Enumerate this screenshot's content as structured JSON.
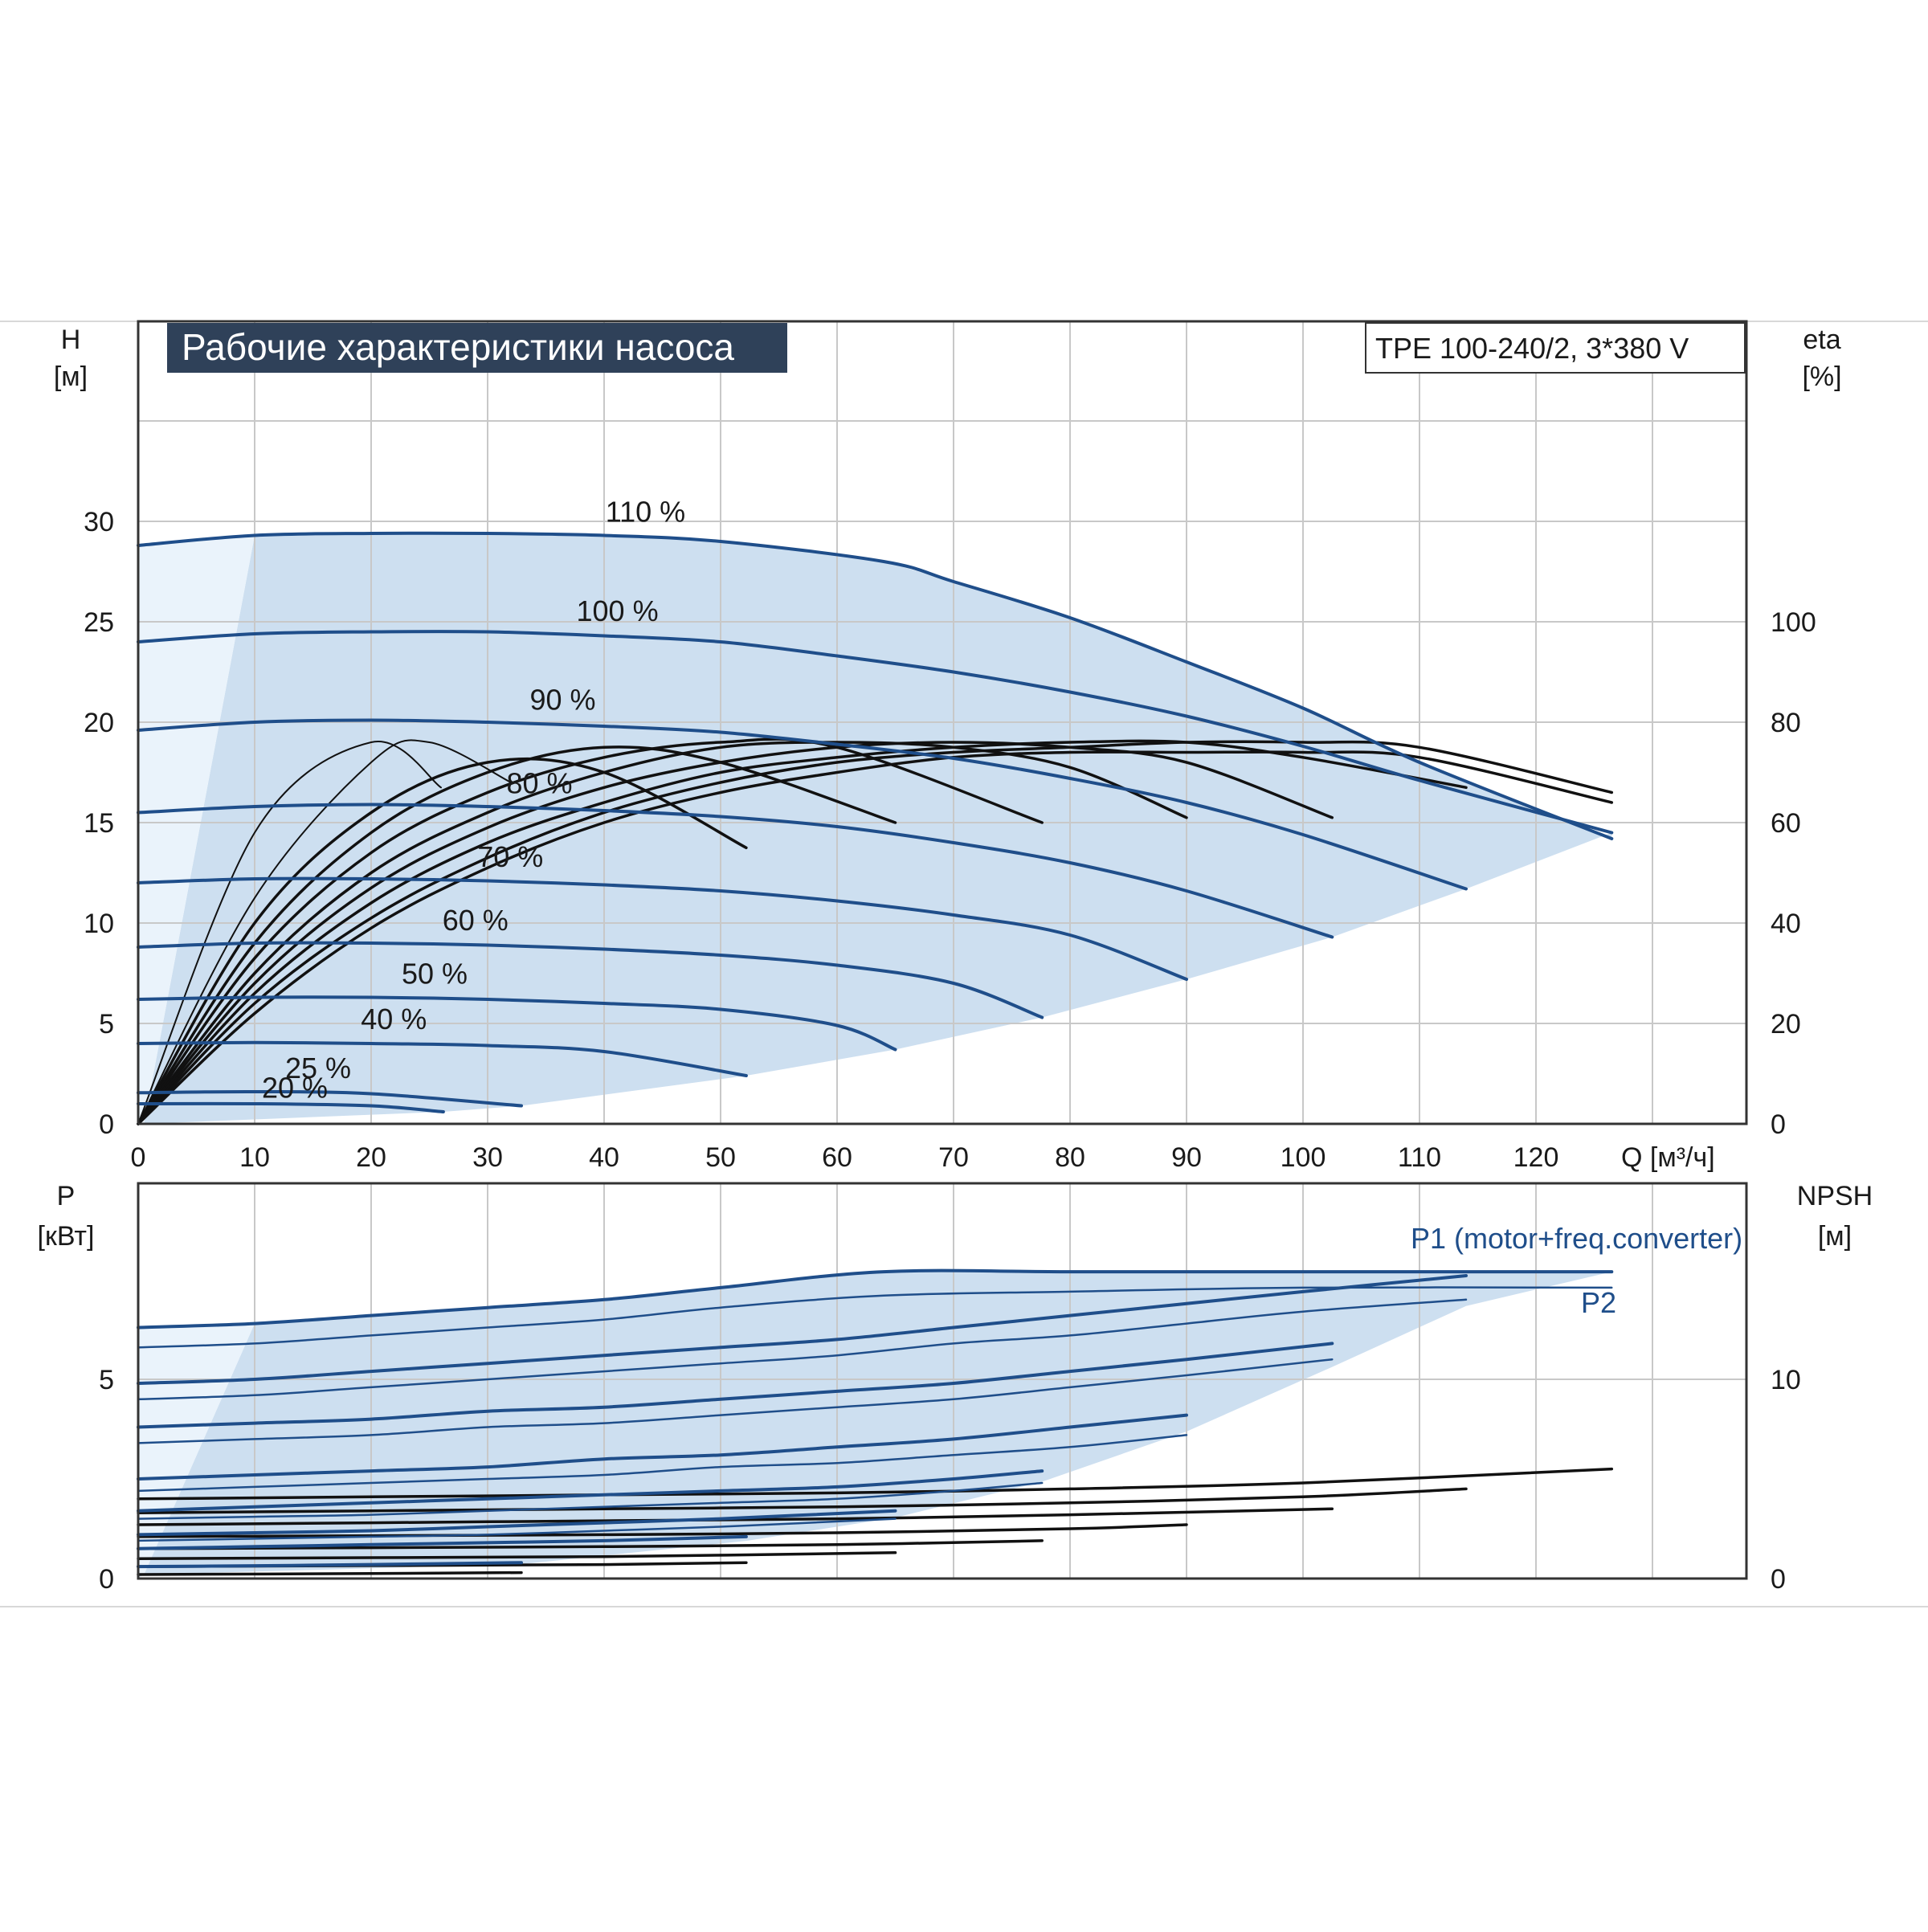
{
  "chart_data": [
    {
      "type": "line",
      "title": "Рабочие характеристики насоса",
      "model": "TPE 100-240/2, 3*380 V",
      "xlabel": "Q [м³/ч]",
      "ylabel": "H",
      "ylabel_unit": "[м]",
      "y2label": "eta",
      "y2label_unit": "[%]",
      "xlim": [
        0,
        130
      ],
      "ylim": [
        0,
        35
      ],
      "y2lim": [
        0,
        140
      ],
      "x_ticks": [
        "0",
        "10",
        "20",
        "30",
        "40",
        "50",
        "60",
        "70",
        "80",
        "90",
        "100",
        "110",
        "120"
      ],
      "y_ticks": [
        "0",
        "5",
        "10",
        "15",
        "20",
        "25",
        "30"
      ],
      "y2_ticks": [
        "0",
        "20",
        "40",
        "60",
        "80",
        "100"
      ],
      "grid": true,
      "colors": {
        "head_curves": "#1f4e8a",
        "fill": "#cddff0",
        "eta": "#111111",
        "title_bg": "#2f4159"
      },
      "speed_curves": [
        {
          "label": "110 %",
          "x": [
            0,
            10,
            20,
            30,
            40,
            50,
            64,
            70,
            80,
            90,
            100,
            110,
            126.5
          ],
          "y": [
            28.8,
            29.3,
            29.4,
            29.4,
            29.3,
            29,
            28,
            27,
            25.2,
            23,
            20.7,
            18,
            14.2
          ]
        },
        {
          "label": "100 %",
          "x": [
            0,
            10,
            20,
            30,
            40,
            50,
            60,
            70,
            80,
            90,
            100,
            110,
            126.5
          ],
          "y": [
            24,
            24.4,
            24.5,
            24.5,
            24.3,
            24,
            23.3,
            22.5,
            21.5,
            20.3,
            18.8,
            17.1,
            14.5
          ]
        },
        {
          "label": "90 %",
          "x": [
            0,
            10,
            20,
            30,
            40,
            50,
            60,
            70,
            80,
            90,
            100,
            114
          ],
          "y": [
            19.6,
            20,
            20.1,
            20,
            19.8,
            19.5,
            18.9,
            18.2,
            17.2,
            16,
            14.4,
            11.7
          ]
        },
        {
          "label": "80 %",
          "x": [
            0,
            10,
            20,
            30,
            40,
            50,
            60,
            70,
            80,
            90,
            102.5
          ],
          "y": [
            15.5,
            15.8,
            15.9,
            15.8,
            15.6,
            15.3,
            14.8,
            14,
            13,
            11.6,
            9.3
          ]
        },
        {
          "label": "70 %",
          "x": [
            0,
            10,
            20,
            30,
            40,
            50,
            60,
            70,
            80,
            90
          ],
          "y": [
            12,
            12.2,
            12.2,
            12.1,
            11.9,
            11.6,
            11.1,
            10.4,
            9.4,
            7.2
          ]
        },
        {
          "label": "60 %",
          "x": [
            0,
            10,
            20,
            30,
            40,
            50,
            60,
            70,
            77.6
          ],
          "y": [
            8.8,
            9,
            9,
            8.9,
            8.7,
            8.4,
            7.9,
            7,
            5.3
          ]
        },
        {
          "label": "50 %",
          "x": [
            0,
            10,
            20,
            30,
            40,
            50,
            60,
            65
          ],
          "y": [
            6.2,
            6.3,
            6.3,
            6.2,
            6,
            5.7,
            4.9,
            3.7
          ]
        },
        {
          "label": "40 %",
          "x": [
            0,
            10,
            20,
            30,
            40,
            52.2
          ],
          "y": [
            4,
            4.05,
            4,
            3.9,
            3.6,
            2.4
          ]
        },
        {
          "label": "25 %",
          "x": [
            0,
            10,
            20,
            32.9
          ],
          "y": [
            1.55,
            1.6,
            1.5,
            0.9
          ]
        },
        {
          "label": "20 %",
          "x": [
            0,
            10,
            20,
            26.2
          ],
          "y": [
            1,
            1,
            0.9,
            0.6
          ]
        }
      ],
      "efficiency_curves": [
        {
          "x": [
            0,
            10,
            20,
            26
          ],
          "y": [
            0,
            58,
            76,
            67
          ]
        },
        {
          "x": [
            0,
            10,
            20,
            25,
            32
          ],
          "y": [
            0,
            45,
            72,
            76,
            68
          ]
        },
        {
          "x": [
            0,
            10,
            20,
            30,
            40,
            52.2
          ],
          "y": [
            0,
            40,
            62,
            72,
            70,
            55
          ]
        },
        {
          "x": [
            0,
            10,
            20,
            30,
            40,
            50,
            65
          ],
          "y": [
            0,
            36,
            58,
            70,
            75,
            72,
            60
          ]
        },
        {
          "x": [
            0,
            10,
            20,
            30,
            40,
            50,
            60,
            77.6
          ],
          "y": [
            0,
            33,
            54,
            66,
            73,
            76,
            75,
            60
          ]
        },
        {
          "x": [
            0,
            10,
            20,
            30,
            40,
            50,
            60,
            70,
            80,
            90
          ],
          "y": [
            0,
            30,
            50,
            62,
            70,
            75,
            76,
            75,
            71,
            61
          ]
        },
        {
          "x": [
            0,
            10,
            20,
            30,
            40,
            50,
            60,
            70,
            80,
            90,
            102.5
          ],
          "y": [
            0,
            28,
            47,
            59,
            67,
            72,
            75,
            76,
            75,
            72,
            61
          ]
        },
        {
          "x": [
            0,
            10,
            20,
            30,
            40,
            50,
            60,
            70,
            80,
            90,
            100,
            114
          ],
          "y": [
            0,
            26,
            44,
            56,
            64,
            70,
            73,
            75,
            76,
            76,
            73,
            67
          ]
        },
        {
          "x": [
            0,
            10,
            20,
            30,
            40,
            50,
            60,
            70,
            80,
            90,
            100,
            110,
            126.5
          ],
          "y": [
            0,
            24,
            41,
            53,
            62,
            68,
            72,
            74,
            75,
            76,
            76,
            75,
            66
          ]
        },
        {
          "x": [
            0,
            10,
            20,
            30,
            40,
            50,
            60,
            70,
            80,
            90,
            100,
            110,
            126.5
          ],
          "y": [
            0,
            22,
            39,
            51,
            60,
            66,
            70,
            73,
            74,
            74,
            74,
            73,
            64
          ]
        }
      ]
    },
    {
      "type": "line",
      "ylabel": "P",
      "ylabel_unit": "[кВт]",
      "y2label": "NPSH",
      "y2label_unit": "[м]",
      "xlim": [
        0,
        130
      ],
      "ylim": [
        0,
        9.3
      ],
      "y2lim": [
        0,
        18.6
      ],
      "y_ticks": [
        "0",
        "5"
      ],
      "y2_ticks": [
        "0",
        "10"
      ],
      "grid": true,
      "series_labels": [
        "P1 (motor+freq.converter)",
        "P2"
      ],
      "p1_curves": [
        {
          "x": [
            0,
            10,
            20,
            30,
            40,
            50,
            64,
            80,
            100,
            126.5
          ],
          "y": [
            6.3,
            6.4,
            6.6,
            6.8,
            7.0,
            7.3,
            7.7,
            7.7,
            7.7,
            7.7
          ]
        },
        {
          "x": [
            0,
            10,
            20,
            30,
            40,
            50,
            60,
            70,
            80,
            90,
            100,
            114
          ],
          "y": [
            4.9,
            5.0,
            5.2,
            5.4,
            5.6,
            5.8,
            6.0,
            6.3,
            6.6,
            6.9,
            7.2,
            7.6
          ]
        },
        {
          "x": [
            0,
            10,
            20,
            30,
            40,
            50,
            60,
            70,
            80,
            90,
            102.5
          ],
          "y": [
            3.8,
            3.9,
            4.0,
            4.2,
            4.3,
            4.5,
            4.7,
            4.9,
            5.2,
            5.5,
            5.9
          ]
        },
        {
          "x": [
            0,
            10,
            20,
            30,
            40,
            50,
            60,
            70,
            80,
            90
          ],
          "y": [
            2.5,
            2.6,
            2.7,
            2.8,
            3.0,
            3.1,
            3.3,
            3.5,
            3.8,
            4.1
          ]
        },
        {
          "x": [
            0,
            10,
            20,
            30,
            40,
            50,
            60,
            70,
            77.6
          ],
          "y": [
            1.7,
            1.8,
            1.9,
            2.0,
            2.1,
            2.2,
            2.3,
            2.5,
            2.7
          ]
        },
        {
          "x": [
            0,
            10,
            20,
            30,
            40,
            50,
            65
          ],
          "y": [
            1.1,
            1.15,
            1.2,
            1.3,
            1.4,
            1.5,
            1.7
          ]
        },
        {
          "x": [
            0,
            10,
            20,
            30,
            40,
            52.2
          ],
          "y": [
            0.75,
            0.8,
            0.85,
            0.9,
            0.95,
            1.05
          ]
        },
        {
          "x": [
            0,
            10,
            20,
            32.9
          ],
          "y": [
            0.3,
            0.32,
            0.35,
            0.4
          ]
        }
      ],
      "p2_curves": [
        {
          "x": [
            0,
            10,
            20,
            30,
            40,
            50,
            64,
            80,
            100,
            126.5
          ],
          "y": [
            5.8,
            5.9,
            6.1,
            6.3,
            6.5,
            6.8,
            7.1,
            7.2,
            7.3,
            7.3
          ]
        },
        {
          "x": [
            0,
            10,
            20,
            30,
            40,
            50,
            60,
            70,
            80,
            90,
            100,
            114
          ],
          "y": [
            4.5,
            4.6,
            4.8,
            5.0,
            5.2,
            5.4,
            5.6,
            5.9,
            6.1,
            6.4,
            6.7,
            7.0
          ]
        },
        {
          "x": [
            0,
            10,
            20,
            30,
            40,
            50,
            60,
            70,
            80,
            90,
            102.5
          ],
          "y": [
            3.4,
            3.5,
            3.6,
            3.8,
            3.9,
            4.1,
            4.3,
            4.5,
            4.8,
            5.1,
            5.5
          ]
        },
        {
          "x": [
            0,
            10,
            20,
            30,
            40,
            50,
            60,
            70,
            80,
            90
          ],
          "y": [
            2.2,
            2.3,
            2.4,
            2.5,
            2.6,
            2.8,
            2.9,
            3.1,
            3.3,
            3.6
          ]
        },
        {
          "x": [
            0,
            10,
            20,
            30,
            40,
            50,
            60,
            70,
            77.6
          ],
          "y": [
            1.5,
            1.55,
            1.6,
            1.7,
            1.8,
            1.9,
            2.0,
            2.2,
            2.4
          ]
        },
        {
          "x": [
            0,
            10,
            20,
            30,
            40,
            50,
            65
          ],
          "y": [
            0.95,
            1.0,
            1.05,
            1.1,
            1.2,
            1.3,
            1.5
          ]
        }
      ],
      "npsh_curves": [
        {
          "x": [
            0,
            20,
            40,
            60,
            80,
            100,
            126.5
          ],
          "y": [
            4.0,
            4.1,
            4.2,
            4.3,
            4.5,
            4.8,
            5.5
          ]
        },
        {
          "x": [
            0,
            20,
            40,
            60,
            80,
            100,
            114
          ],
          "y": [
            3.3,
            3.4,
            3.5,
            3.6,
            3.8,
            4.1,
            4.5
          ]
        },
        {
          "x": [
            0,
            20,
            40,
            60,
            80,
            102.5
          ],
          "y": [
            2.7,
            2.8,
            2.9,
            3.0,
            3.2,
            3.5
          ]
        },
        {
          "x": [
            0,
            20,
            40,
            60,
            80,
            90
          ],
          "y": [
            2.1,
            2.15,
            2.2,
            2.3,
            2.5,
            2.7
          ]
        },
        {
          "x": [
            0,
            20,
            40,
            60,
            77.6
          ],
          "y": [
            1.5,
            1.55,
            1.6,
            1.7,
            1.9
          ]
        },
        {
          "x": [
            0,
            20,
            40,
            65
          ],
          "y": [
            1.0,
            1.05,
            1.1,
            1.3
          ]
        },
        {
          "x": [
            0,
            20,
            40,
            52.2
          ],
          "y": [
            0.6,
            0.65,
            0.7,
            0.8
          ]
        },
        {
          "x": [
            0,
            20,
            32.9
          ],
          "y": [
            0.2,
            0.25,
            0.3
          ]
        }
      ]
    }
  ]
}
